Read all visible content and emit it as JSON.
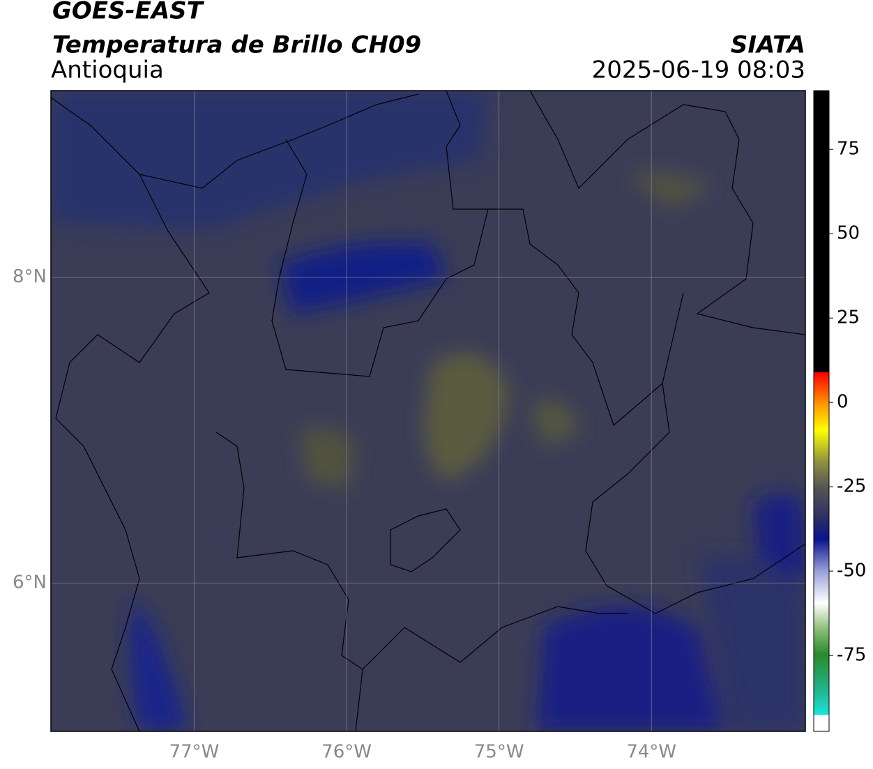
{
  "header": {
    "title": "GOES-EAST",
    "subtitle": "Temperatura de Brillo CH09",
    "region": "Antioquia",
    "source": "SIATA",
    "datetime": "2025-06-19 08:03"
  },
  "map": {
    "xlim": [
      -77.94,
      -72.99
    ],
    "ylim": [
      5.03,
      9.22
    ],
    "xticks": [
      {
        "value": -77,
        "label": "77°W"
      },
      {
        "value": -76,
        "label": "76°W"
      },
      {
        "value": -75,
        "label": "75°W"
      },
      {
        "value": -74,
        "label": "74°W"
      }
    ],
    "yticks": [
      {
        "value": 8,
        "label": "8°N"
      },
      {
        "value": 6,
        "label": "6°N"
      }
    ],
    "grid": true
  },
  "colorbar": {
    "lim": [
      -97.5,
      92.4
    ],
    "ticks": [
      75,
      50,
      25,
      0,
      -25,
      -50,
      -75
    ]
  }
}
